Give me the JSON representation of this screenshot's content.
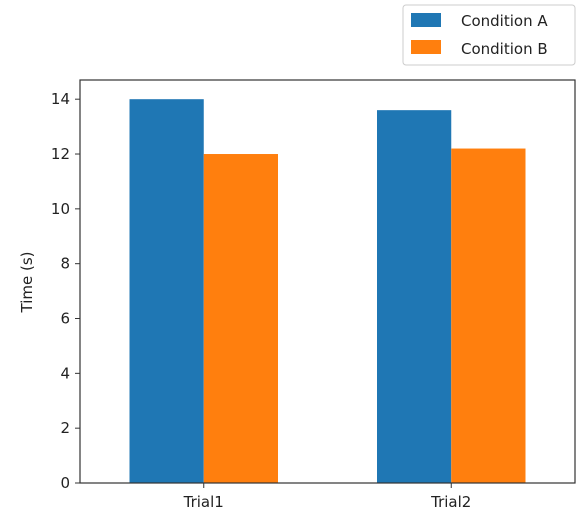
{
  "chart_data": {
    "type": "bar",
    "categories": [
      "Trial1",
      "Trial2"
    ],
    "series": [
      {
        "name": "Condition A",
        "values": [
          14.0,
          13.6
        ],
        "color": "#1f77b4"
      },
      {
        "name": "Condition B",
        "values": [
          12.0,
          12.2
        ],
        "color": "#ff7f0e"
      }
    ],
    "xlabel": "",
    "ylabel": "Time (s)",
    "ylim": [
      0,
      14.7
    ],
    "yticks": [
      0,
      2,
      4,
      6,
      8,
      10,
      12,
      14
    ],
    "grid": false,
    "legend_position": "top-right"
  }
}
